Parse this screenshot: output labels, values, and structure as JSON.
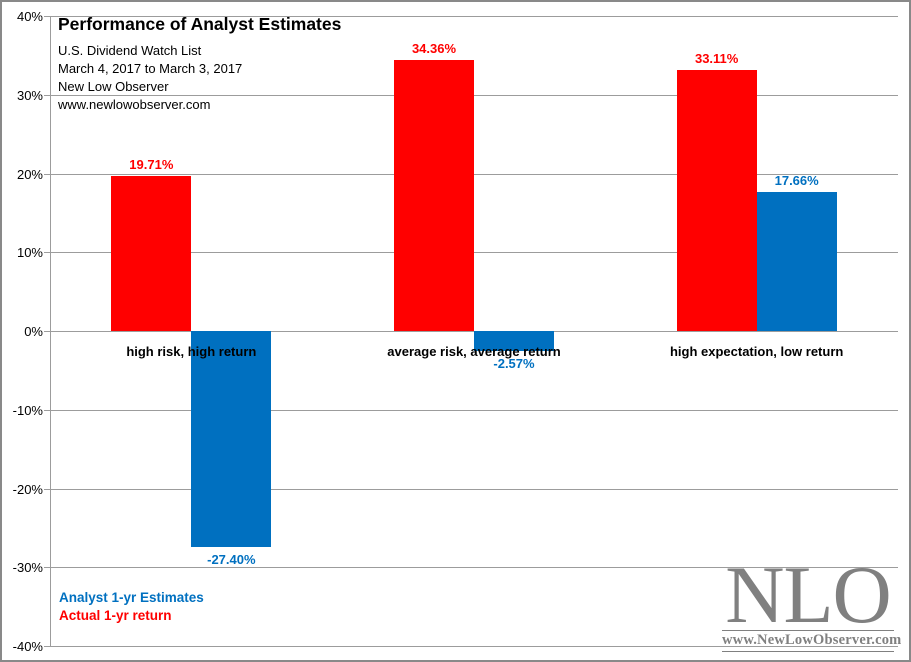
{
  "chart_data": {
    "type": "bar",
    "title": "Performance of Analyst Estimates",
    "subtitle_lines": [
      "U.S. Dividend Watch List",
      "March 4, 2017 to March 3, 2017",
      "New Low Observer",
      "www.newlowobserver.com"
    ],
    "categories": [
      "high risk, high return",
      "average risk, average return",
      "high expectation, low return"
    ],
    "series": [
      {
        "name": "Actual 1-yr return",
        "color": "#FF0000",
        "values": [
          19.71,
          34.36,
          33.11
        ],
        "data_labels": [
          "19.71%",
          "34.36%",
          "33.11%"
        ]
      },
      {
        "name": "Analyst 1-yr Estimates",
        "color": "#0070C0",
        "values": [
          -27.4,
          -2.57,
          17.66
        ],
        "data_labels": [
          "-27.40%",
          "-2.57%",
          "17.66%"
        ]
      }
    ],
    "ylim": [
      -40,
      40
    ],
    "ytick_step": 10,
    "ytick_labels": [
      "40%",
      "30%",
      "20%",
      "10%",
      "0%",
      "-10%",
      "-20%",
      "-30%",
      "-40%"
    ],
    "grid": true,
    "legend_position": "bottom-left"
  },
  "legend": {
    "items": [
      {
        "label": "Analyst 1-yr Estimates",
        "color": "#0070C0"
      },
      {
        "label": "Actual 1-yr return",
        "color": "#FF0000"
      }
    ]
  },
  "logo": {
    "text": "NLO",
    "url": "www.NewLowObserver.com",
    "color": "#808080"
  },
  "colors": {
    "actual_bar": "#FF0000",
    "estimate_bar": "#0070C0",
    "gridline": "#9C9C9C",
    "frame_border": "#898989"
  }
}
